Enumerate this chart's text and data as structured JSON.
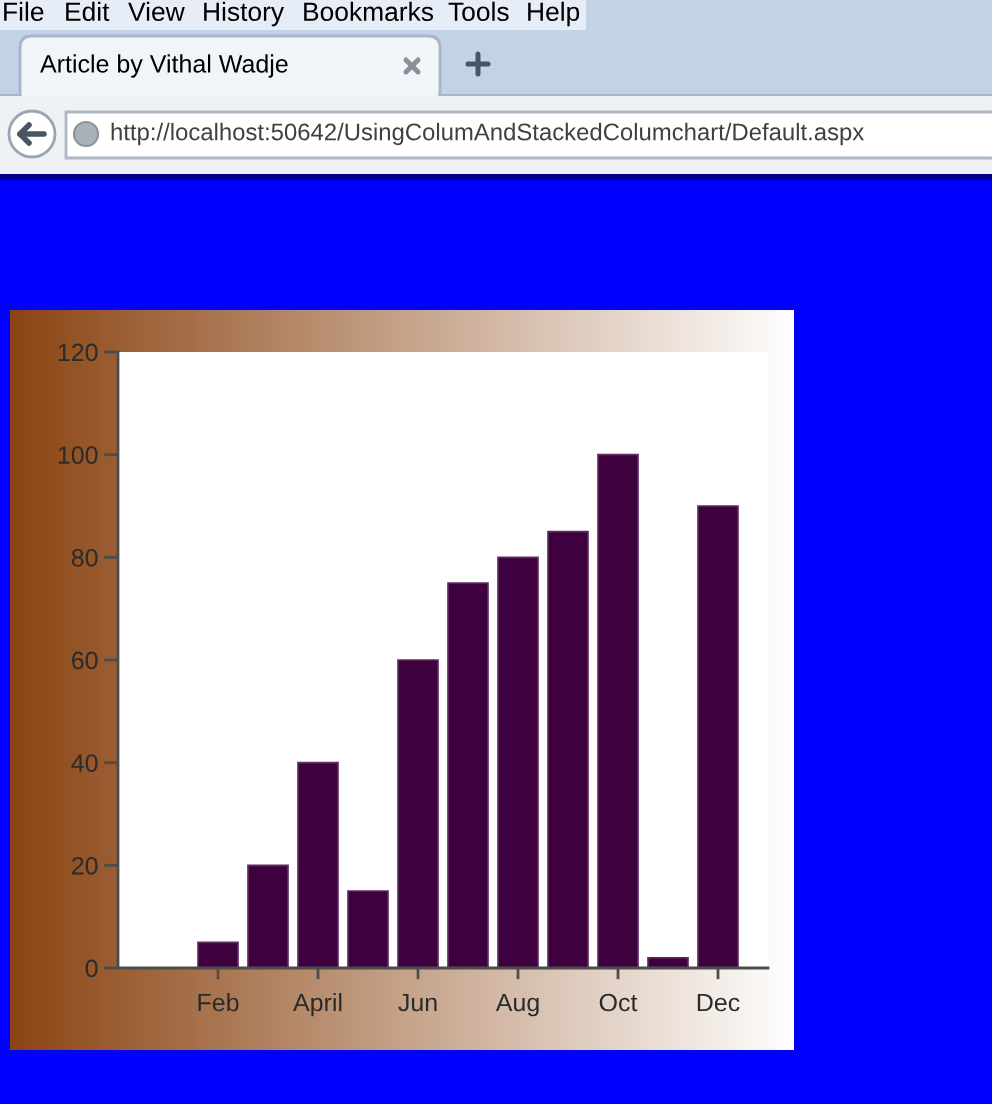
{
  "chart_data": {
    "type": "bar",
    "categories": [
      null,
      "Feb",
      null,
      "April",
      null,
      "Jun",
      null,
      "Aug",
      null,
      "Oct",
      null,
      "Dec"
    ],
    "values": [
      null,
      5,
      20,
      40,
      15,
      60,
      75,
      80,
      85,
      100,
      2,
      90
    ],
    "color": "#3f003f",
    "ylim": [
      0,
      120
    ],
    "yticks": [
      0,
      20,
      40,
      60,
      80,
      100,
      120
    ],
    "annotations": [
      "File",
      "Edit",
      "View",
      "History",
      "Bookmarks",
      "Tools",
      "Help",
      "Article by Vithal Wadje",
      "http://localhost:50642/UsingColumAndStackedColumchart/Default.aspx"
    ]
  }
}
